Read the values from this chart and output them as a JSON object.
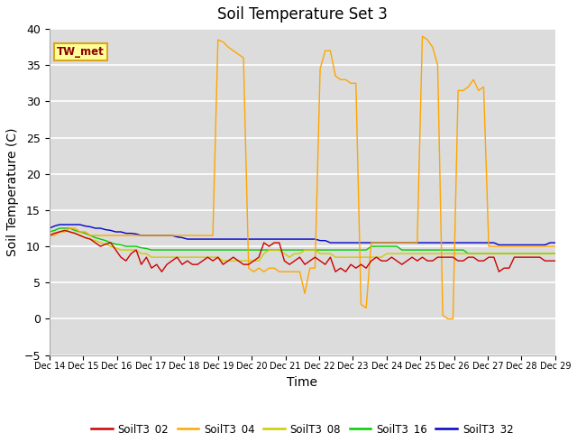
{
  "title": "Soil Temperature Set 3",
  "xlabel": "Time",
  "ylabel": "Soil Temperature (C)",
  "ylim": [
    -5,
    40
  ],
  "yticks": [
    -5,
    0,
    5,
    10,
    15,
    20,
    25,
    30,
    35,
    40
  ],
  "xtick_labels": [
    "Dec 14",
    "Dec 15",
    "Dec 16",
    "Dec 17",
    "Dec 18",
    "Dec 19",
    "Dec 20",
    "Dec 21",
    "Dec 22",
    "Dec 23",
    "Dec 24",
    "Dec 25",
    "Dec 26",
    "Dec 27",
    "Dec 28",
    "Dec 29"
  ],
  "annotation_text": "TW_met",
  "annotation_color": "#8B0000",
  "annotation_bg": "#FFFF99",
  "annotation_border": "#DAA520",
  "bg_color": "#DCDCDC",
  "series_order": [
    "SoilT3_32",
    "SoilT3_16",
    "SoilT3_08",
    "SoilT3_04",
    "SoilT3_02"
  ],
  "legend_order": [
    "SoilT3_02",
    "SoilT3_04",
    "SoilT3_08",
    "SoilT3_16",
    "SoilT3_32"
  ],
  "series": {
    "SoilT3_02": {
      "color": "#CC0000",
      "values": [
        11.5,
        11.8,
        12.0,
        12.2,
        12.0,
        11.8,
        11.5,
        11.2,
        11.0,
        10.5,
        10.0,
        10.3,
        10.5,
        9.5,
        8.5,
        8.0,
        9.0,
        9.5,
        7.5,
        8.5,
        7.0,
        7.5,
        6.5,
        7.5,
        8.0,
        8.5,
        7.5,
        8.0,
        7.5,
        7.5,
        8.0,
        8.5,
        8.0,
        8.5,
        7.5,
        8.0,
        8.5,
        8.0,
        7.5,
        7.5,
        8.0,
        8.5,
        10.5,
        10.0,
        10.5,
        10.5,
        8.0,
        7.5,
        8.0,
        8.5,
        7.5,
        8.0,
        8.5,
        8.0,
        7.5,
        8.5,
        6.5,
        7.0,
        6.5,
        7.5,
        7.0,
        7.5,
        7.0,
        8.0,
        8.5,
        8.0,
        8.0,
        8.5,
        8.0,
        7.5,
        8.0,
        8.5,
        8.0,
        8.5,
        8.0,
        8.0,
        8.5,
        8.5,
        8.5,
        8.5,
        8.0,
        8.0,
        8.5,
        8.5,
        8.0,
        8.0,
        8.5,
        8.5,
        6.5,
        7.0,
        7.0,
        8.5,
        8.5,
        8.5,
        8.5,
        8.5,
        8.5,
        8.0,
        8.0,
        8.0
      ]
    },
    "SoilT3_04": {
      "color": "#FFA500",
      "values": [
        11.5,
        11.5,
        12.0,
        12.0,
        12.5,
        12.5,
        12.0,
        12.0,
        11.5,
        11.5,
        11.5,
        11.5,
        11.5,
        11.5,
        11.5,
        11.5,
        11.5,
        11.5,
        11.5,
        11.5,
        11.5,
        11.5,
        11.5,
        11.5,
        11.5,
        11.5,
        11.5,
        11.5,
        11.5,
        11.5,
        11.5,
        11.5,
        11.5,
        38.5,
        38.2,
        37.5,
        37.0,
        36.5,
        36.0,
        7.0,
        6.5,
        7.0,
        6.5,
        7.0,
        7.0,
        6.5,
        6.5,
        6.5,
        6.5,
        6.5,
        3.5,
        7.0,
        7.0,
        34.5,
        37.0,
        37.0,
        33.5,
        33.0,
        33.0,
        32.5,
        32.5,
        2.0,
        1.5,
        10.5,
        10.5,
        10.5,
        10.5,
        10.5,
        10.5,
        10.5,
        10.5,
        10.5,
        10.5,
        39.0,
        38.5,
        37.5,
        35.0,
        0.5,
        0.0,
        0.0,
        31.5,
        31.5,
        32.0,
        33.0,
        31.5,
        32.0,
        10.0,
        10.0,
        10.0,
        10.0,
        10.0,
        10.0,
        10.0,
        10.0,
        10.0,
        10.0,
        10.0,
        10.0,
        10.0,
        10.0
      ]
    },
    "SoilT3_08": {
      "color": "#CCCC00",
      "values": [
        11.5,
        11.8,
        12.0,
        12.2,
        12.0,
        11.8,
        11.5,
        11.2,
        11.0,
        10.8,
        10.5,
        10.3,
        10.0,
        9.8,
        9.5,
        9.5,
        9.5,
        9.5,
        9.0,
        9.0,
        8.5,
        8.5,
        8.5,
        8.5,
        8.5,
        8.5,
        8.5,
        8.5,
        8.5,
        8.5,
        8.5,
        8.5,
        8.5,
        8.5,
        8.0,
        8.0,
        8.0,
        8.0,
        8.0,
        8.0,
        8.0,
        8.0,
        9.0,
        9.5,
        9.5,
        9.5,
        9.0,
        8.5,
        9.0,
        9.0,
        9.5,
        9.5,
        9.5,
        9.0,
        9.0,
        9.0,
        8.5,
        8.5,
        8.5,
        8.5,
        8.5,
        8.5,
        8.5,
        8.5,
        8.5,
        8.5,
        9.0,
        9.0,
        9.0,
        9.0,
        9.0,
        9.0,
        9.0,
        9.0,
        9.0,
        9.0,
        9.0,
        9.0,
        9.0,
        9.0,
        9.0,
        9.0,
        9.0,
        9.0,
        9.0,
        9.0,
        9.0,
        9.0,
        9.0,
        9.0,
        9.0,
        9.0,
        9.0,
        9.0,
        9.0,
        9.0,
        9.0,
        9.0,
        9.0,
        9.0
      ]
    },
    "SoilT3_16": {
      "color": "#00CC00",
      "values": [
        12.0,
        12.2,
        12.5,
        12.5,
        12.5,
        12.2,
        12.0,
        11.8,
        11.5,
        11.2,
        11.0,
        10.8,
        10.5,
        10.3,
        10.2,
        10.0,
        10.0,
        10.0,
        9.8,
        9.7,
        9.5,
        9.5,
        9.5,
        9.5,
        9.5,
        9.5,
        9.5,
        9.5,
        9.5,
        9.5,
        9.5,
        9.5,
        9.5,
        9.5,
        9.5,
        9.5,
        9.5,
        9.5,
        9.5,
        9.5,
        9.5,
        9.5,
        9.5,
        9.5,
        9.5,
        9.5,
        9.5,
        9.5,
        9.5,
        9.5,
        9.5,
        9.5,
        9.5,
        9.5,
        9.5,
        9.5,
        9.5,
        9.5,
        9.5,
        9.5,
        9.5,
        9.5,
        9.5,
        10.0,
        10.0,
        10.0,
        10.0,
        10.0,
        10.0,
        9.5,
        9.5,
        9.5,
        9.5,
        9.5,
        9.5,
        9.5,
        9.5,
        9.5,
        9.5,
        9.5,
        9.5,
        9.5,
        9.0,
        9.0,
        9.0,
        9.0,
        9.0,
        9.0,
        9.0,
        9.0,
        9.0,
        9.0,
        9.0,
        9.0,
        9.0,
        9.0,
        9.0,
        9.0,
        9.0,
        9.0
      ]
    },
    "SoilT3_32": {
      "color": "#0000CC",
      "values": [
        12.5,
        12.8,
        13.0,
        13.0,
        13.0,
        13.0,
        13.0,
        12.8,
        12.7,
        12.5,
        12.5,
        12.3,
        12.2,
        12.0,
        12.0,
        11.8,
        11.8,
        11.7,
        11.5,
        11.5,
        11.5,
        11.5,
        11.5,
        11.5,
        11.5,
        11.3,
        11.2,
        11.0,
        11.0,
        11.0,
        11.0,
        11.0,
        11.0,
        11.0,
        11.0,
        11.0,
        11.0,
        11.0,
        11.0,
        11.0,
        11.0,
        11.0,
        11.0,
        11.0,
        11.0,
        11.0,
        11.0,
        11.0,
        11.0,
        11.0,
        11.0,
        11.0,
        11.0,
        10.8,
        10.8,
        10.5,
        10.5,
        10.5,
        10.5,
        10.5,
        10.5,
        10.5,
        10.5,
        10.5,
        10.5,
        10.5,
        10.5,
        10.5,
        10.5,
        10.5,
        10.5,
        10.5,
        10.5,
        10.5,
        10.5,
        10.5,
        10.5,
        10.5,
        10.5,
        10.5,
        10.5,
        10.5,
        10.5,
        10.5,
        10.5,
        10.5,
        10.5,
        10.5,
        10.2,
        10.2,
        10.2,
        10.2,
        10.2,
        10.2,
        10.2,
        10.2,
        10.2,
        10.2,
        10.5,
        10.5
      ]
    }
  },
  "n_points": 100,
  "total_days": 15
}
